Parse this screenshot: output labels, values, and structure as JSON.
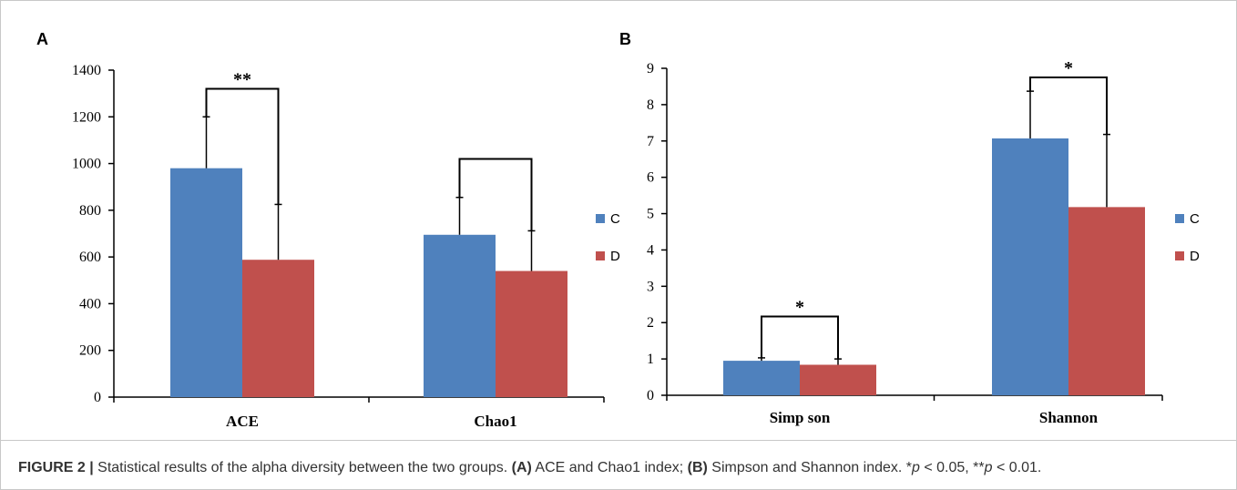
{
  "caption": {
    "label": "FIGURE 2 |",
    "text_1": " Statistical results of the alpha diversity between the two groups. ",
    "a_tag": "(A)",
    "text_2": " ACE and Chao1 index; ",
    "b_tag": "(B)",
    "text_3": " Simpson and Shannon index. *",
    "p1": "p",
    "text_4": " < 0.05, **",
    "p2": "p",
    "text_5": " < 0.01."
  },
  "colors": {
    "C": "#4f81bd",
    "D": "#c0504d"
  },
  "chart_data": [
    {
      "panel": "A",
      "type": "bar",
      "categories": [
        "ACE",
        "Chao1"
      ],
      "series": [
        {
          "name": "C",
          "values": [
            980,
            695
          ],
          "errors": [
            220,
            160
          ]
        },
        {
          "name": "D",
          "values": [
            588,
            540
          ],
          "errors": [
            237,
            172
          ]
        }
      ],
      "ylim": [
        0,
        1400
      ],
      "yticks": [
        0,
        200,
        400,
        600,
        800,
        1000,
        1200,
        1400
      ],
      "significance": [
        {
          "category": "ACE",
          "label": "**",
          "bracket_top": 1320
        },
        {
          "category": "Chao1",
          "label": "",
          "bracket_top": 1020
        }
      ],
      "legend": [
        "C",
        "D"
      ],
      "legend_position": "right",
      "grid": false
    },
    {
      "panel": "B",
      "type": "bar",
      "categories": [
        "Simp son",
        "Shannon"
      ],
      "series": [
        {
          "name": "C",
          "values": [
            0.95,
            7.07
          ],
          "errors": [
            0.08,
            1.3
          ]
        },
        {
          "name": "D",
          "values": [
            0.84,
            5.18
          ],
          "errors": [
            0.16,
            2.0
          ]
        }
      ],
      "ylim": [
        0,
        9
      ],
      "yticks": [
        0,
        1,
        2,
        3,
        4,
        5,
        6,
        7,
        8,
        9
      ],
      "significance": [
        {
          "category": "Simp son",
          "label": "*",
          "bracket_top": 2.17
        },
        {
          "category": "Shannon",
          "label": "*",
          "bracket_top": 8.75
        }
      ],
      "legend": [
        "C",
        "D"
      ],
      "legend_position": "right",
      "grid": false
    }
  ]
}
